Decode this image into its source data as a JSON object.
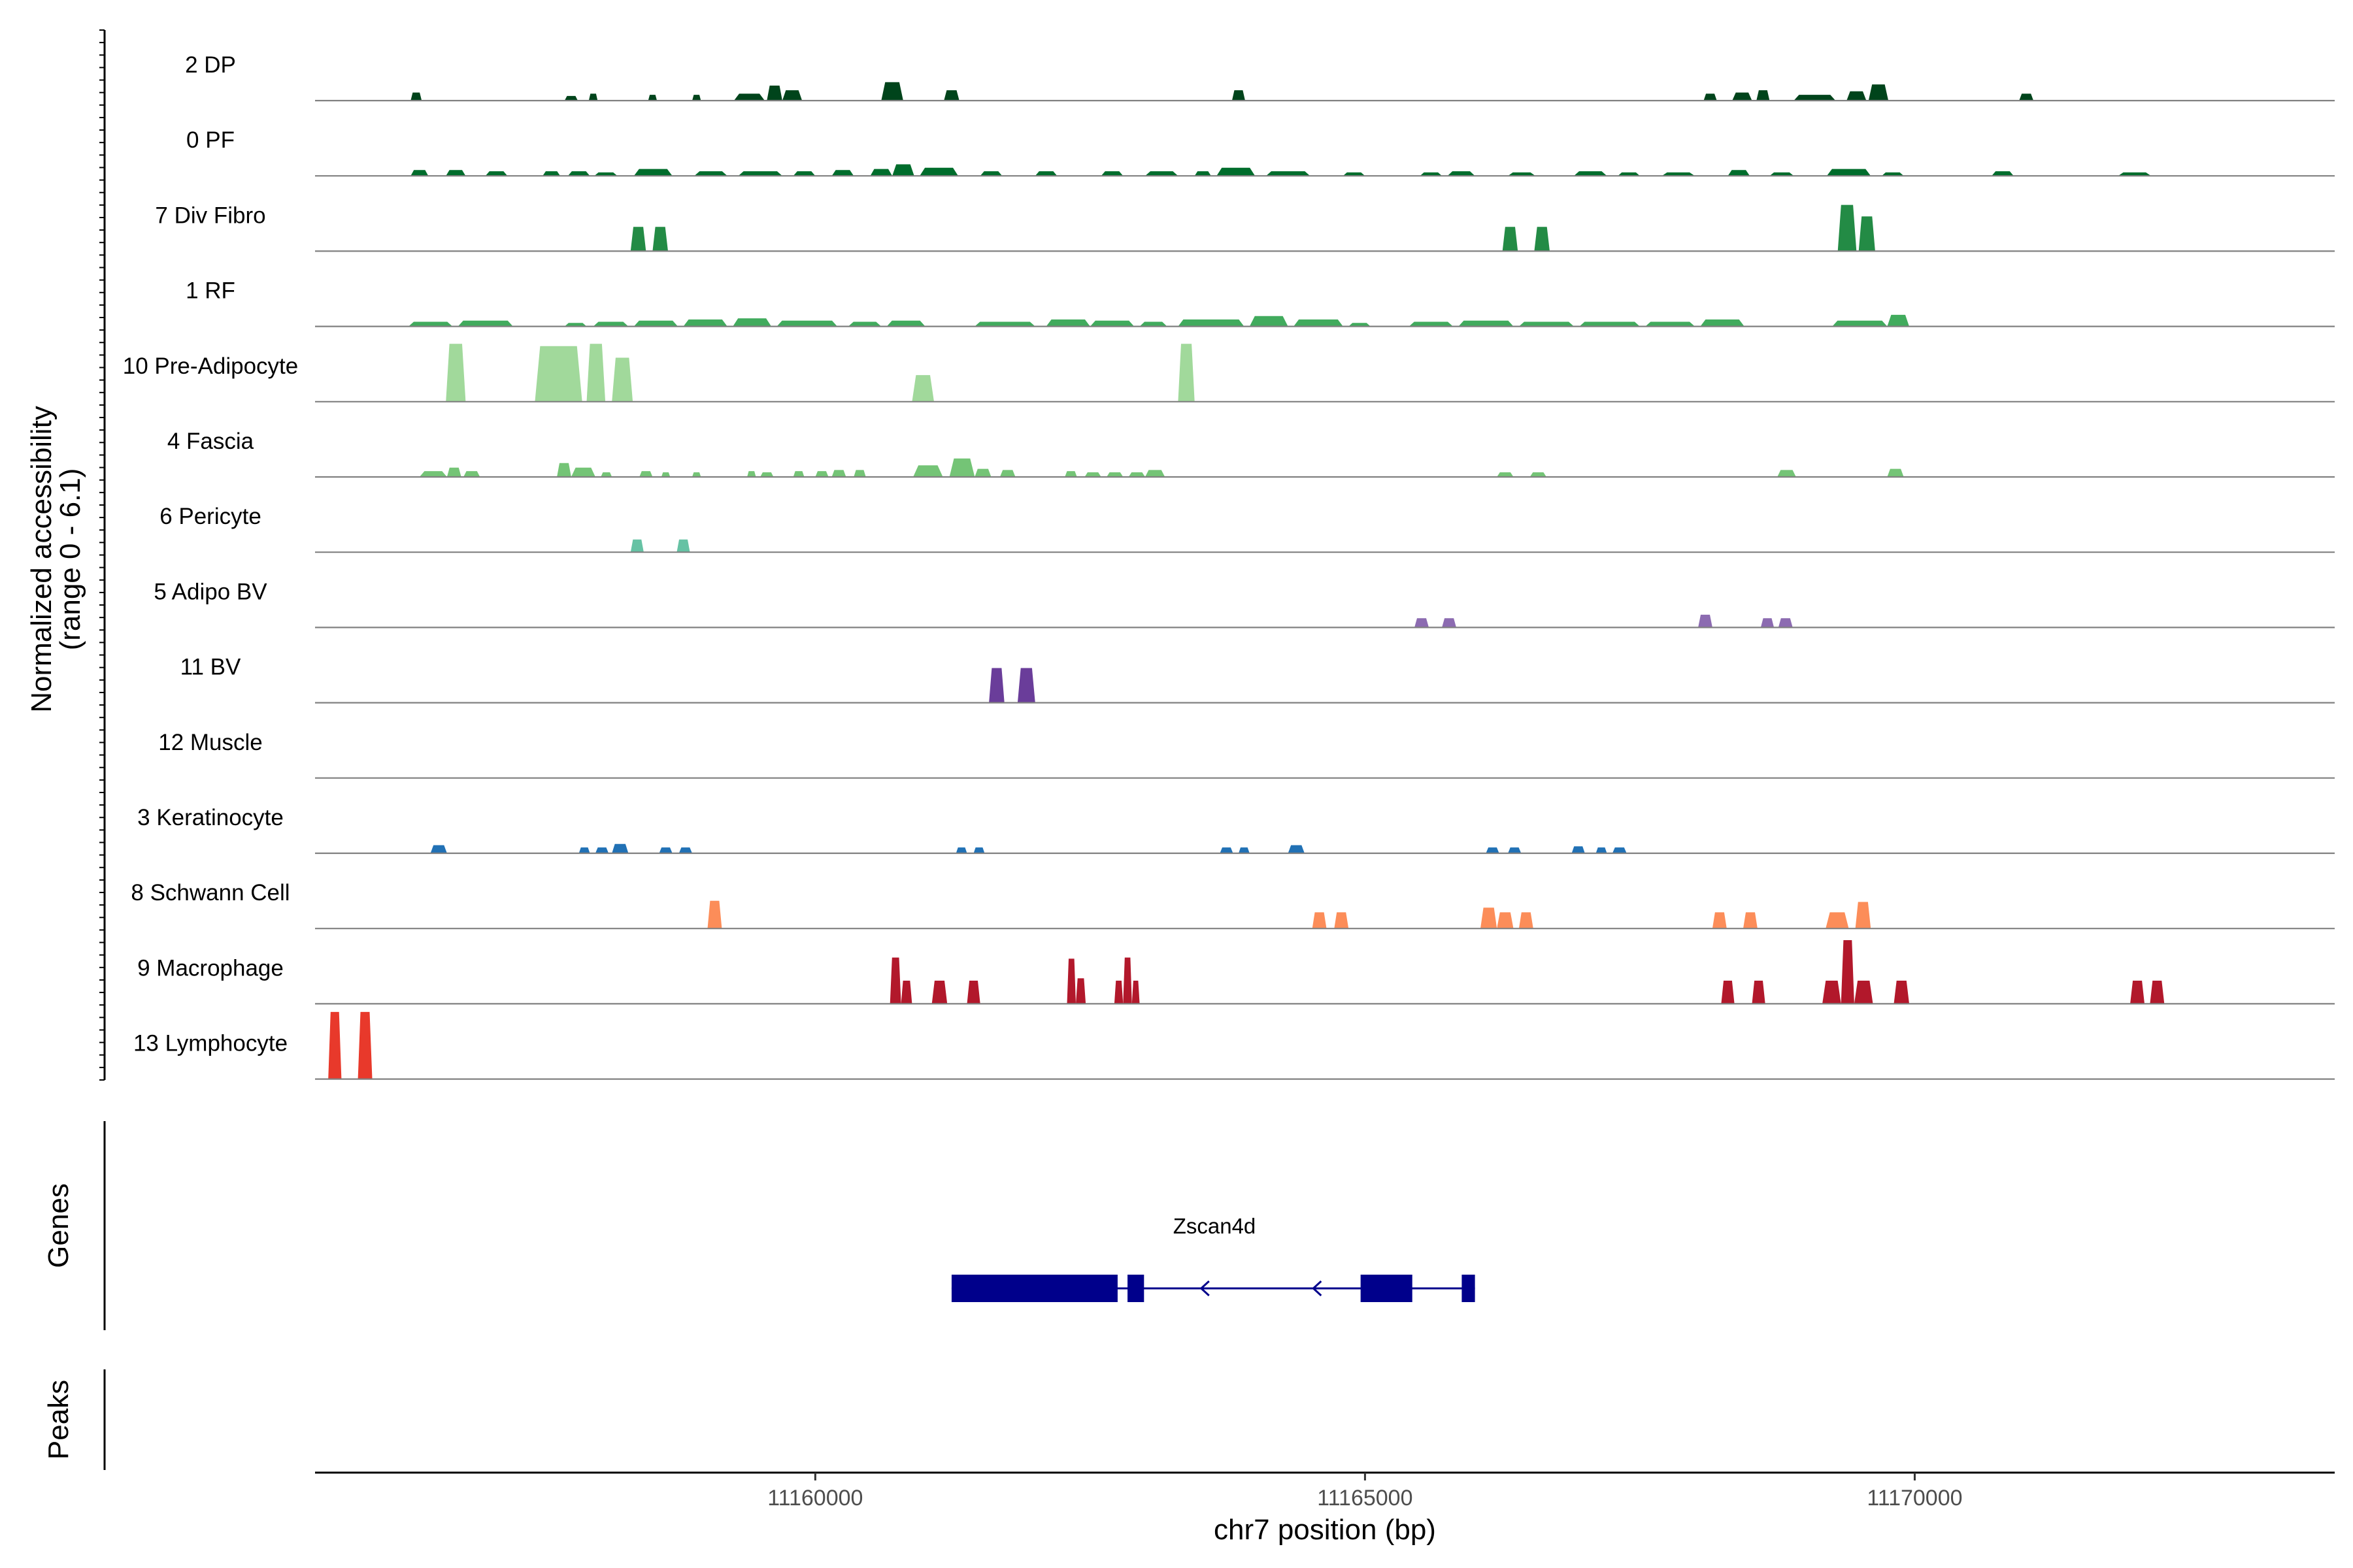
{
  "chart_data": {
    "type": "coverage",
    "tracks_panel": {
      "ylabel_line1": "Normalized accessibility",
      "ylabel_line2": "(range 0 - 6.1)",
      "yrange": [
        0,
        6.1
      ]
    },
    "genes_panel_label": "Genes",
    "peaks_panel_label": "Peaks",
    "xaxis": {
      "title": "chr7 position (bp)",
      "range": [
        11155450,
        11173820
      ],
      "ticks": [
        11160000,
        11165000,
        11170000
      ],
      "tick_labels": [
        "11160000",
        "11165000",
        "11170000"
      ]
    },
    "series": [
      {
        "name": "2 DP",
        "color": "#00441b",
        "peaks": [
          [
            11156320,
            11156420,
            0.7
          ],
          [
            11157720,
            11157840,
            0.4
          ],
          [
            11157940,
            11158020,
            0.6
          ],
          [
            11158480,
            11158560,
            0.5
          ],
          [
            11158880,
            11158960,
            0.5
          ],
          [
            11159260,
            11159540,
            0.6
          ],
          [
            11159560,
            11159700,
            1.3
          ],
          [
            11159700,
            11159880,
            0.9
          ],
          [
            11160600,
            11160800,
            1.6
          ],
          [
            11161170,
            11161310,
            0.9
          ],
          [
            11163790,
            11163910,
            0.9
          ],
          [
            11168080,
            11168200,
            0.6
          ],
          [
            11168340,
            11168520,
            0.7
          ],
          [
            11168560,
            11168680,
            0.9
          ],
          [
            11168900,
            11169280,
            0.5
          ],
          [
            11169380,
            11169560,
            0.8
          ],
          [
            11169580,
            11169760,
            1.4
          ],
          [
            11170950,
            11171080,
            0.6
          ]
        ]
      },
      {
        "name": "0 PF",
        "color": "#006d2c",
        "peaks": [
          [
            11156320,
            11156480,
            0.5
          ],
          [
            11156640,
            11156820,
            0.5
          ],
          [
            11157000,
            11157200,
            0.4
          ],
          [
            11157520,
            11157680,
            0.4
          ],
          [
            11157750,
            11157950,
            0.4
          ],
          [
            11157990,
            11158200,
            0.3
          ],
          [
            11158350,
            11158700,
            0.6
          ],
          [
            11158900,
            11159200,
            0.4
          ],
          [
            11159300,
            11159700,
            0.4
          ],
          [
            11159800,
            11160000,
            0.4
          ],
          [
            11160150,
            11160350,
            0.5
          ],
          [
            11160500,
            11160700,
            0.6
          ],
          [
            11160700,
            11160900,
            1.0
          ],
          [
            11160950,
            11161300,
            0.7
          ],
          [
            11161500,
            11161700,
            0.4
          ],
          [
            11162000,
            11162200,
            0.4
          ],
          [
            11162600,
            11162800,
            0.4
          ],
          [
            11163000,
            11163300,
            0.4
          ],
          [
            11163450,
            11163600,
            0.4
          ],
          [
            11163650,
            11164000,
            0.7
          ],
          [
            11164100,
            11164500,
            0.4
          ],
          [
            11164800,
            11165000,
            0.3
          ],
          [
            11165500,
            11165700,
            0.3
          ],
          [
            11165750,
            11166000,
            0.4
          ],
          [
            11166300,
            11166550,
            0.3
          ],
          [
            11166900,
            11167200,
            0.4
          ],
          [
            11167300,
            11167500,
            0.3
          ],
          [
            11167700,
            11168000,
            0.3
          ],
          [
            11168300,
            11168500,
            0.5
          ],
          [
            11168680,
            11168900,
            0.3
          ],
          [
            11169200,
            11169600,
            0.6
          ],
          [
            11169700,
            11169900,
            0.3
          ],
          [
            11170700,
            11170900,
            0.4
          ],
          [
            11171850,
            11172150,
            0.3
          ]
        ]
      },
      {
        "name": "7 Div Fibro",
        "color": "#238b45",
        "peaks": [
          [
            11158320,
            11158460,
            2.1
          ],
          [
            11158520,
            11158660,
            2.1
          ],
          [
            11166250,
            11166390,
            2.1
          ],
          [
            11166540,
            11166680,
            2.1
          ],
          [
            11169300,
            11169470,
            4.0
          ],
          [
            11169490,
            11169640,
            3.0
          ]
        ]
      },
      {
        "name": "1 RF",
        "color": "#41ab5d",
        "peaks": [
          [
            11156300,
            11156700,
            0.4
          ],
          [
            11156750,
            11157250,
            0.5
          ],
          [
            11157720,
            11157920,
            0.3
          ],
          [
            11157980,
            11158300,
            0.4
          ],
          [
            11158350,
            11158750,
            0.5
          ],
          [
            11158800,
            11159200,
            0.6
          ],
          [
            11159250,
            11159600,
            0.7
          ],
          [
            11159650,
            11160200,
            0.5
          ],
          [
            11160300,
            11160600,
            0.4
          ],
          [
            11160650,
            11161000,
            0.5
          ],
          [
            11161450,
            11162000,
            0.4
          ],
          [
            11162100,
            11162500,
            0.6
          ],
          [
            11162500,
            11162900,
            0.5
          ],
          [
            11162950,
            11163200,
            0.4
          ],
          [
            11163300,
            11163900,
            0.6
          ],
          [
            11163950,
            11164300,
            0.9
          ],
          [
            11164350,
            11164800,
            0.6
          ],
          [
            11164850,
            11165050,
            0.3
          ],
          [
            11165400,
            11165800,
            0.4
          ],
          [
            11165850,
            11166350,
            0.5
          ],
          [
            11166400,
            11166900,
            0.4
          ],
          [
            11166950,
            11167500,
            0.4
          ],
          [
            11167550,
            11168000,
            0.4
          ],
          [
            11168050,
            11168450,
            0.6
          ],
          [
            11169250,
            11169750,
            0.5
          ],
          [
            11169750,
            11169950,
            1.0
          ]
        ]
      },
      {
        "name": "10 Pre-Adipocyte",
        "color": "#a1d99b",
        "peaks": [
          [
            11156640,
            11156820,
            5.0
          ],
          [
            11157450,
            11157880,
            4.8
          ],
          [
            11157920,
            11158090,
            5.0
          ],
          [
            11158150,
            11158340,
            3.8
          ],
          [
            11160880,
            11161080,
            2.3
          ],
          [
            11163300,
            11163450,
            5.0
          ]
        ]
      },
      {
        "name": "4 Fascia",
        "color": "#74c476",
        "peaks": [
          [
            11156400,
            11156650,
            0.5
          ],
          [
            11156650,
            11156780,
            0.8
          ],
          [
            11156800,
            11156950,
            0.5
          ],
          [
            11157650,
            11157780,
            1.2
          ],
          [
            11157780,
            11158000,
            0.8
          ],
          [
            11158050,
            11158150,
            0.4
          ],
          [
            11158400,
            11158520,
            0.5
          ],
          [
            11158600,
            11158680,
            0.4
          ],
          [
            11158880,
            11158960,
            0.4
          ],
          [
            11159380,
            11159460,
            0.5
          ],
          [
            11159500,
            11159620,
            0.4
          ],
          [
            11159800,
            11159900,
            0.5
          ],
          [
            11160000,
            11160120,
            0.5
          ],
          [
            11160150,
            11160280,
            0.6
          ],
          [
            11160350,
            11160460,
            0.6
          ],
          [
            11160890,
            11161160,
            1.0
          ],
          [
            11161220,
            11161450,
            1.6
          ],
          [
            11161450,
            11161600,
            0.7
          ],
          [
            11161680,
            11161820,
            0.6
          ],
          [
            11162270,
            11162380,
            0.5
          ],
          [
            11162450,
            11162600,
            0.4
          ],
          [
            11162650,
            11162800,
            0.4
          ],
          [
            11162850,
            11163000,
            0.4
          ],
          [
            11163000,
            11163180,
            0.6
          ],
          [
            11166200,
            11166350,
            0.4
          ],
          [
            11166500,
            11166650,
            0.4
          ],
          [
            11168750,
            11168920,
            0.6
          ],
          [
            11169750,
            11169900,
            0.7
          ]
        ]
      },
      {
        "name": "6 Pericyte",
        "color": "#66c2a4",
        "peaks": [
          [
            11158320,
            11158440,
            1.1
          ],
          [
            11158740,
            11158860,
            1.1
          ]
        ]
      },
      {
        "name": "5 Adipo BV",
        "color": "#8c6bb1",
        "peaks": [
          [
            11165450,
            11165580,
            0.8
          ],
          [
            11165700,
            11165830,
            0.8
          ],
          [
            11168030,
            11168160,
            1.1
          ],
          [
            11168600,
            11168720,
            0.8
          ],
          [
            11168760,
            11168890,
            0.8
          ]
        ]
      },
      {
        "name": "11 BV",
        "color": "#6a3d9a",
        "peaks": [
          [
            11161580,
            11161720,
            3.0
          ],
          [
            11161840,
            11162000,
            3.0
          ]
        ]
      },
      {
        "name": "12 Muscle",
        "color": "#3f007d",
        "peaks": []
      },
      {
        "name": "3 Keratinocyte",
        "color": "#2171b5",
        "peaks": [
          [
            11156500,
            11156650,
            0.7
          ],
          [
            11157850,
            11157950,
            0.5
          ],
          [
            11158000,
            11158120,
            0.5
          ],
          [
            11158150,
            11158300,
            0.8
          ],
          [
            11158580,
            11158700,
            0.5
          ],
          [
            11158760,
            11158880,
            0.5
          ],
          [
            11161280,
            11161380,
            0.5
          ],
          [
            11161440,
            11161540,
            0.5
          ],
          [
            11163680,
            11163800,
            0.5
          ],
          [
            11163850,
            11163950,
            0.5
          ],
          [
            11164300,
            11164450,
            0.7
          ],
          [
            11166100,
            11166220,
            0.5
          ],
          [
            11166300,
            11166420,
            0.5
          ],
          [
            11166880,
            11167000,
            0.6
          ],
          [
            11167100,
            11167200,
            0.5
          ],
          [
            11167250,
            11167380,
            0.5
          ]
        ]
      },
      {
        "name": "8 Schwann Cell",
        "color": "#fc8d59",
        "peaks": [
          [
            11159020,
            11159150,
            2.4
          ],
          [
            11164520,
            11164650,
            1.4
          ],
          [
            11164720,
            11164850,
            1.4
          ],
          [
            11166050,
            11166200,
            1.8
          ],
          [
            11166200,
            11166350,
            1.4
          ],
          [
            11166400,
            11166530,
            1.4
          ],
          [
            11168160,
            11168290,
            1.4
          ],
          [
            11168440,
            11168570,
            1.4
          ],
          [
            11169190,
            11169400,
            1.4
          ],
          [
            11169460,
            11169600,
            2.3
          ]
        ]
      },
      {
        "name": "9 Macrophage",
        "color": "#b2182b",
        "peaks": [
          [
            11160680,
            11160780,
            4.0
          ],
          [
            11160780,
            11160880,
            2.0
          ],
          [
            11161060,
            11161200,
            2.0
          ],
          [
            11161380,
            11161500,
            2.0
          ],
          [
            11162290,
            11162370,
            3.9
          ],
          [
            11162370,
            11162460,
            2.2
          ],
          [
            11162720,
            11162800,
            2.0
          ],
          [
            11162800,
            11162880,
            4.0
          ],
          [
            11162880,
            11162950,
            2.0
          ],
          [
            11168240,
            11168360,
            2.0
          ],
          [
            11168520,
            11168640,
            2.0
          ],
          [
            11169160,
            11169330,
            2.0
          ],
          [
            11169330,
            11169450,
            5.5
          ],
          [
            11169450,
            11169620,
            2.0
          ],
          [
            11169810,
            11169950,
            2.0
          ],
          [
            11171960,
            11172090,
            2.0
          ],
          [
            11172140,
            11172270,
            2.0
          ]
        ]
      },
      {
        "name": "13 Lymphocyte",
        "color": "#e8392b",
        "peaks": [
          [
            11155570,
            11155690,
            5.8
          ],
          [
            11155840,
            11155970,
            5.8
          ]
        ]
      }
    ],
    "gene": {
      "name": "Zscan4d",
      "strand": "-",
      "start": 11161240,
      "end": 11166000,
      "exons": [
        [
          11161240,
          11162750
        ],
        [
          11162840,
          11162990
        ],
        [
          11164960,
          11165430
        ],
        [
          11165880,
          11166000
        ]
      ],
      "color": "#00008b"
    },
    "peaks_track": []
  }
}
